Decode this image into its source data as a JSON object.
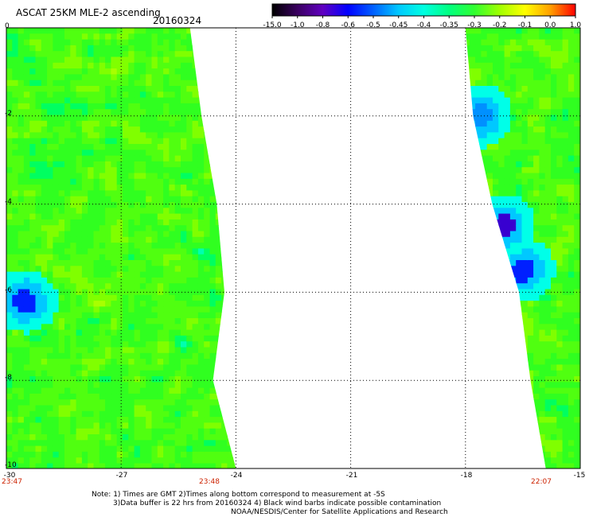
{
  "header": {
    "title": "ASCAT 25KM MLE-2 ascending",
    "date": "20160324"
  },
  "colorbar": {
    "labels": [
      "-15.0",
      "-1.0",
      "-0.8",
      "-0.6",
      "-0.5",
      "-0.45",
      "-0.4",
      "-0.35",
      "-0.3",
      "-0.2",
      "-0.1",
      "0.0",
      "1.0"
    ],
    "colors": [
      "#000000",
      "#3a0060",
      "#6000c0",
      "#0000ff",
      "#0060ff",
      "#00c8ff",
      "#00ffe0",
      "#00ff80",
      "#30ff30",
      "#a0ff00",
      "#ffff00",
      "#ffa000",
      "#ff0000"
    ]
  },
  "map": {
    "y_ticks": [
      "0",
      "-2",
      "-4",
      "-6",
      "-8",
      "-10"
    ],
    "x_ticks": [
      "-30",
      "-27",
      "-24",
      "-21",
      "-18",
      "-15"
    ],
    "times": [
      "23:47",
      "23:48",
      "22:07"
    ],
    "lon_range": [
      -30,
      -15
    ],
    "lat_range": [
      -10,
      0
    ],
    "left_swath_edge": [
      {
        "lat": 0,
        "lon": -25.2
      },
      {
        "lat": -2,
        "lon": -24.9
      },
      {
        "lat": -4,
        "lon": -24.5
      },
      {
        "lat": -6,
        "lon": -24.3
      },
      {
        "lat": -8,
        "lon": -24.6
      },
      {
        "lat": -10,
        "lon": -24.0
      }
    ],
    "right_swath_edge": [
      {
        "lat": 0,
        "lon": -18.0
      },
      {
        "lat": -2,
        "lon": -17.8
      },
      {
        "lat": -4,
        "lon": -17.3
      },
      {
        "lat": -6,
        "lon": -16.6
      },
      {
        "lat": -8,
        "lon": -16.3
      },
      {
        "lat": -10,
        "lon": -15.9
      }
    ],
    "low_value_patches": [
      {
        "lat": -6.2,
        "lon": -29.5,
        "value": -0.6
      },
      {
        "lat": -4.5,
        "lon": -17.0,
        "value": -0.8
      },
      {
        "lat": -5.5,
        "lon": -16.5,
        "value": -0.6
      },
      {
        "lat": -2.0,
        "lon": -17.6,
        "value": -0.5
      }
    ]
  },
  "notes": {
    "line1": "Note: 1) Times are GMT 2)Times along bottom correspond to measurement at -5S",
    "line2": "3)Data buffer is 22 hrs from 20160324 4) Black wind barbs indicate possible contamination",
    "line3": "NOAA/NESDIS/Center for Satellite Applications and Research"
  }
}
